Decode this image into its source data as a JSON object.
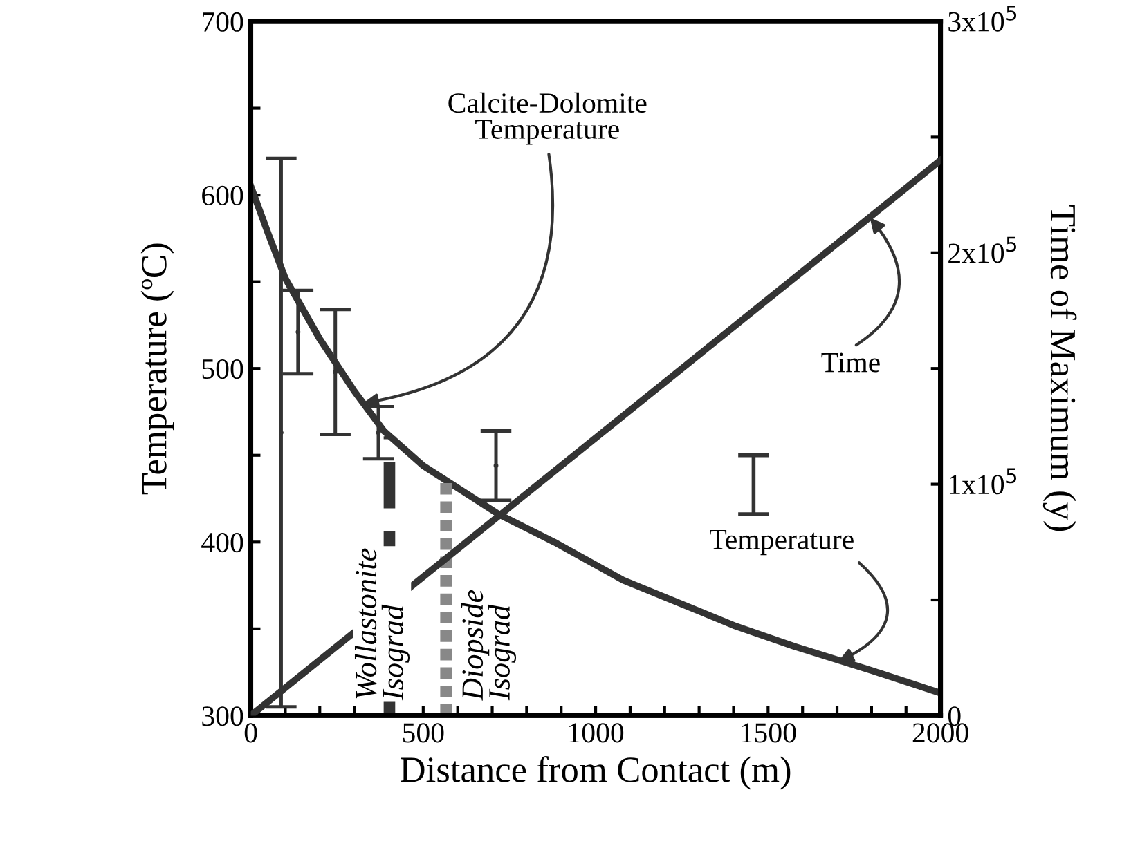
{
  "chart_data": {
    "type": "line",
    "xlabel": "Distance from Contact (m)",
    "ylabel": "Temperature (ºC)",
    "y2label": "Time of Maximum (y)",
    "xlim": [
      0,
      2000
    ],
    "ylim": [
      300,
      700
    ],
    "y2lim": [
      0,
      300000
    ],
    "xticks": [
      0,
      {
        "value": 100,
        "label": null
      },
      {
        "value": 200,
        "label": null
      },
      {
        "value": 300,
        "label": null
      },
      {
        "value": 400,
        "label": null
      },
      500,
      {
        "value": 600,
        "label": null
      },
      {
        "value": 700,
        "label": null
      },
      {
        "value": 800,
        "label": null
      },
      {
        "value": 900,
        "label": null
      },
      1000,
      {
        "value": 1100,
        "label": null
      },
      {
        "value": 1200,
        "label": null
      },
      {
        "value": 1300,
        "label": null
      },
      {
        "value": 1400,
        "label": null
      },
      1500,
      {
        "value": 1600,
        "label": null
      },
      {
        "value": 1700,
        "label": null
      },
      {
        "value": 1800,
        "label": null
      },
      {
        "value": 1900,
        "label": null
      },
      2000
    ],
    "yticks": [
      300,
      {
        "value": 350,
        "label": null
      },
      400,
      {
        "value": 450,
        "label": null
      },
      500,
      {
        "value": 550,
        "label": null
      },
      600,
      {
        "value": 650,
        "label": null
      },
      700
    ],
    "y2ticks": [
      0,
      {
        "value": 50000,
        "label": null
      },
      {
        "value": 100000,
        "label": "1x10$^{5}$"
      },
      {
        "value": 150000,
        "label": null
      },
      {
        "value": 200000,
        "label": "2x10$^{5}$"
      },
      {
        "value": 250000,
        "label": null
      },
      {
        "value": 300000,
        "label": "3x10$^{5}$"
      }
    ],
    "grid": false,
    "legend": false,
    "series": [
      {
        "color": "#333333",
        "x": [
          0,
          50,
          100,
          200,
          300,
          386,
          500,
          719,
          880,
          1080,
          1241,
          1400,
          1574,
          1800,
          2000
        ],
        "values": [
          605,
          578,
          552,
          517,
          487,
          464,
          444,
          416,
          400,
          378,
          365,
          352,
          340,
          326,
          313
        ]
      },
      {
        "type": "line",
        "axis": "y2",
        "color": "#333333",
        "x": [
          0,
          2000
        ],
        "values": [
          0,
          240000
        ]
      },
      {
        "type": "scatter",
        "marker": "none",
        "color": "#333333",
        "x": [
          88,
          137,
          245,
          370,
          711
        ],
        "values": [
          463,
          521,
          498,
          463,
          444
        ],
        "errors": [
          158,
          24,
          36,
          15,
          20
        ]
      },
      {
        "type": "line",
        "name": "Wollastonite\nIsograd",
        "line_style": "dashed",
        "color": "#333333",
        "x": [
          402,
          402
        ],
        "values": [
          300,
          461
        ]
      },
      {
        "type": "line",
        "name": "Diopside\nIsograd",
        "line_style": "dotted",
        "color": "#888888",
        "x": [
          566,
          566
        ],
        "values": [
          300,
          434
        ]
      }
    ],
    "annotations": [
      {
        "text": "Calcite-Dolomite\nTemperature",
        "x": 325,
        "y": 480
      },
      {
        "text": "Time",
        "x": 1795,
        "y": 587
      },
      {
        "text": "Temperature",
        "x": 1703,
        "y": 331
      }
    ]
  }
}
